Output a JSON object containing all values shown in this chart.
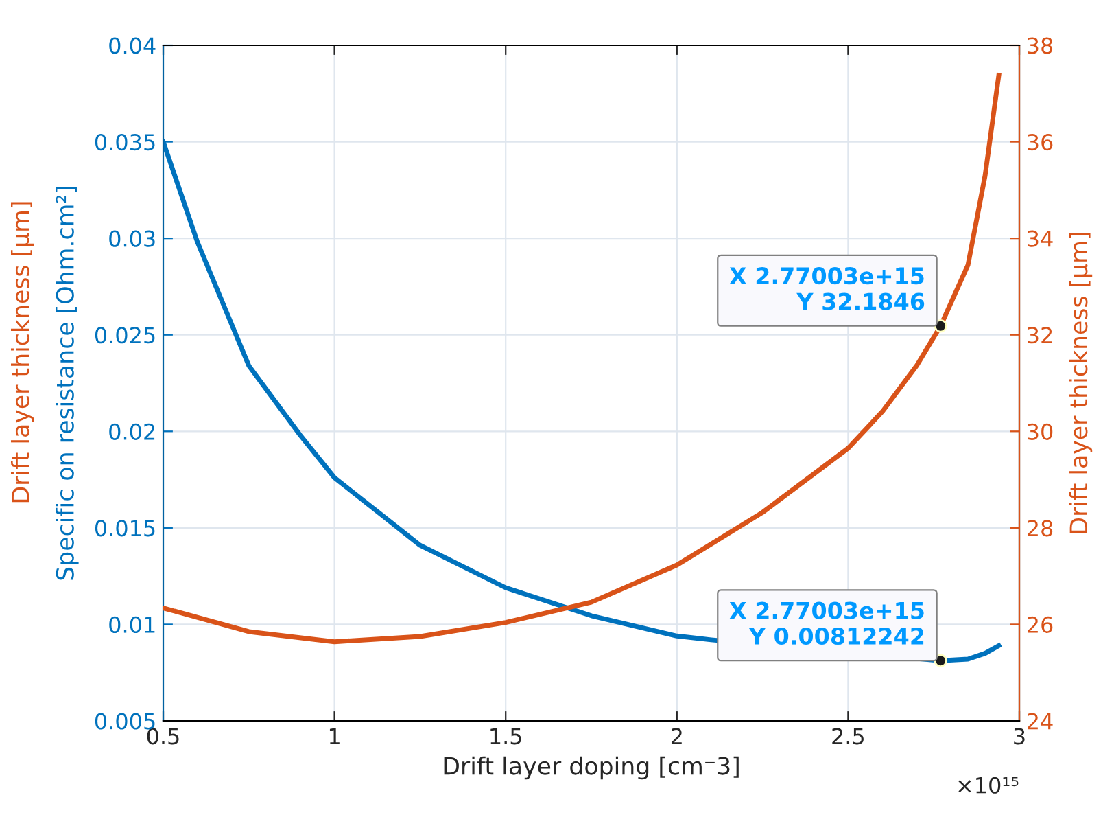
{
  "chart_data": {
    "type": "line",
    "xlabel": "Drift layer doping [cm⁻3]",
    "ylabel": "Specific on resistance [Ohm.cm²]",
    "y2label": "Drift layer thickness [μm]",
    "xlim": [
      0.5,
      3
    ],
    "xticks": [
      0.5,
      1,
      1.5,
      2,
      2.5,
      3
    ],
    "ylim": [
      0.005,
      0.04
    ],
    "yticks": [
      0.005,
      0.01,
      0.015,
      0.02,
      0.025,
      0.03,
      0.035,
      0.04
    ],
    "y2lim": [
      24,
      38
    ],
    "y2ticks": [
      24,
      26,
      28,
      30,
      32,
      34,
      36,
      38
    ],
    "grid": true,
    "line_style": "solid",
    "marker": "none",
    "series": [
      {
        "color": "#0072bd",
        "x": [
          0.5,
          0.6,
          0.75,
          0.9,
          1.0,
          1.25,
          1.5,
          1.75,
          2.0,
          2.1,
          2.77003,
          2.85,
          2.9,
          2.94
        ],
        "values": [
          0.035,
          0.0298,
          0.0234,
          0.0198,
          0.0176,
          0.0141,
          0.0119,
          0.01045,
          0.0094,
          0.0092,
          0.00812242,
          0.0082,
          0.0085,
          0.0089
        ]
      },
      {
        "color": "#d95319",
        "axis": "y2",
        "x": [
          0.5,
          0.75,
          1.0,
          1.25,
          1.5,
          1.75,
          2.0,
          2.25,
          2.5,
          2.6,
          2.7,
          2.77003,
          2.85,
          2.9,
          2.94
        ],
        "values": [
          26.34,
          25.85,
          25.64,
          25.75,
          26.04,
          26.46,
          27.23,
          28.32,
          29.65,
          30.41,
          31.36,
          32.1846,
          33.45,
          35.3,
          37.38
        ]
      }
    ],
    "annotations": [
      "×10¹⁵",
      "Drift layer thickness [μm]",
      "X 2.77003e+15\nY 32.1846",
      {
        "text": "X 2.77003e+15\nY 0.00812242",
        "x": 2.77003,
        "y": 0.00812242
      }
    ]
  }
}
